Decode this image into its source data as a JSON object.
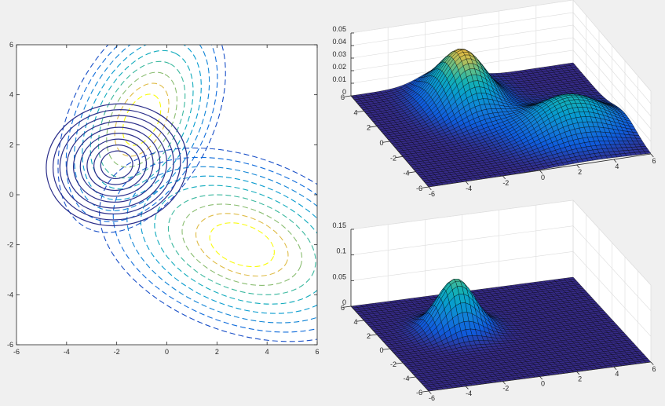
{
  "chart_data": [
    {
      "type": "contour",
      "title": "",
      "xlabel": "",
      "ylabel": "",
      "xlim": [
        -6,
        6
      ],
      "ylim": [
        -6,
        6
      ],
      "xticks": [
        "-6",
        "-4",
        "-2",
        "0",
        "2",
        "4",
        "6"
      ],
      "yticks": [
        "6",
        "4",
        "2",
        "0",
        "-2",
        "-4",
        "-6"
      ],
      "grid": false,
      "series": [
        {
          "line_style": "dashed",
          "components": [
            {
              "mean": [
                -1,
                3
              ],
              "major_axis_angle_deg": 63,
              "sigma_major": 1.8,
              "sigma_minor": 1.05,
              "weight": 0.5
            },
            {
              "mean": [
                3,
                -2
              ],
              "major_axis_angle_deg": -20,
              "sigma_major": 2.2,
              "sigma_minor": 1.3,
              "weight": 0.5
            }
          ],
          "levels": 9,
          "colormap": "parula"
        },
        {
          "line_style": "solid",
          "components": [
            {
              "mean": [
                -2,
                1.2
              ],
              "major_axis_angle_deg": 10,
              "sigma_major": 1.05,
              "sigma_minor": 0.9,
              "weight": 1
            }
          ],
          "levels": 9,
          "color": "#2b2e8a"
        }
      ]
    },
    {
      "type": "surface",
      "title": "",
      "xlim": [
        -6,
        6
      ],
      "ylim": [
        -6,
        6
      ],
      "zlim": [
        0,
        0.05
      ],
      "xticks": [
        "-6",
        "-4",
        "-2",
        "0",
        "2",
        "4",
        "6"
      ],
      "yticks": [
        "-6",
        "-4",
        "-2",
        "0",
        "2",
        "4",
        "6"
      ],
      "zticks": [
        "0",
        "0.01",
        "0.02",
        "0.03",
        "0.04",
        "0.05"
      ],
      "peaks": [
        {
          "center": [
            -1,
            3
          ],
          "height": 0.043
        },
        {
          "center": [
            3,
            -2
          ],
          "height": 0.028
        }
      ],
      "colormap": "parula",
      "grid": true
    },
    {
      "type": "surface",
      "title": "",
      "xlim": [
        -6,
        6
      ],
      "ylim": [
        -6,
        6
      ],
      "zlim": [
        0,
        0.15
      ],
      "xticks": [
        "-6",
        "-4",
        "-2",
        "0",
        "2",
        "4",
        "6"
      ],
      "yticks": [
        "-6",
        "-4",
        "-2",
        "0",
        "2",
        "4",
        "6"
      ],
      "zticks": [
        "0",
        "0.05",
        "0.1",
        "0.15"
      ],
      "peaks": [
        {
          "center": [
            -2,
            1.2
          ],
          "height": 0.1
        }
      ],
      "colormap": "parula",
      "grid": true
    }
  ]
}
